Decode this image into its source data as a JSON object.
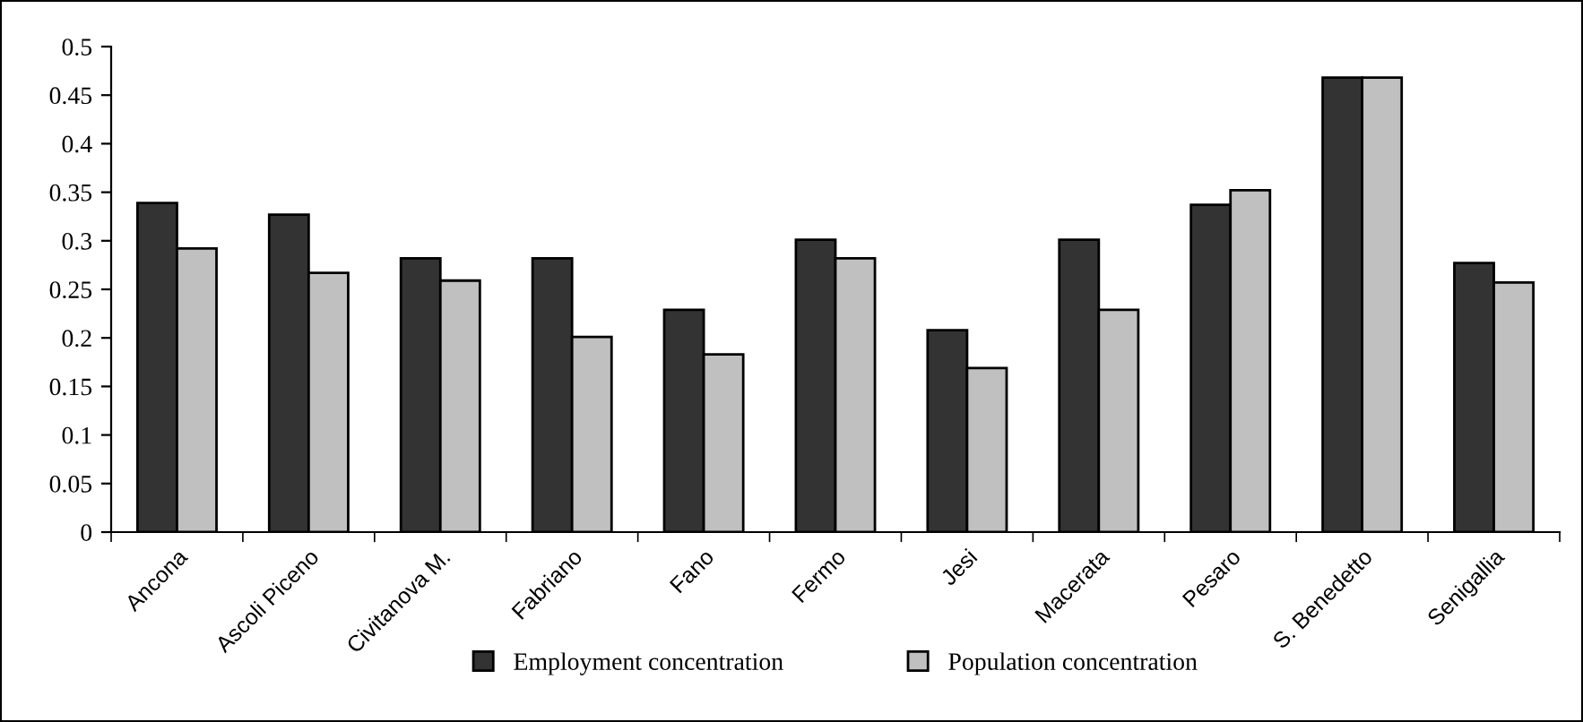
{
  "chart_data": {
    "type": "bar",
    "categories": [
      "Ancona",
      "Ascoli Piceno",
      "Civitanova M.",
      "Fabriano",
      "Fano",
      "Fermo",
      "Jesi",
      "Macerata",
      "Pesaro",
      "S. Benedetto",
      "Senigallia"
    ],
    "series": [
      {
        "name": "Employment concentration",
        "color": "#333333",
        "values": [
          0.339,
          0.327,
          0.282,
          0.282,
          0.229,
          0.301,
          0.208,
          0.301,
          0.337,
          0.468,
          0.277
        ]
      },
      {
        "name": "Population concentration",
        "color": "#c0c0c0",
        "values": [
          0.292,
          0.267,
          0.259,
          0.201,
          0.183,
          0.282,
          0.169,
          0.229,
          0.352,
          0.468,
          0.257
        ]
      }
    ],
    "ylim": [
      0,
      0.5
    ],
    "yticks": [
      0,
      0.05,
      0.1,
      0.15,
      0.2,
      0.25,
      0.3,
      0.35,
      0.4,
      0.45,
      0.5
    ],
    "grid": false,
    "legend": "bottom"
  }
}
